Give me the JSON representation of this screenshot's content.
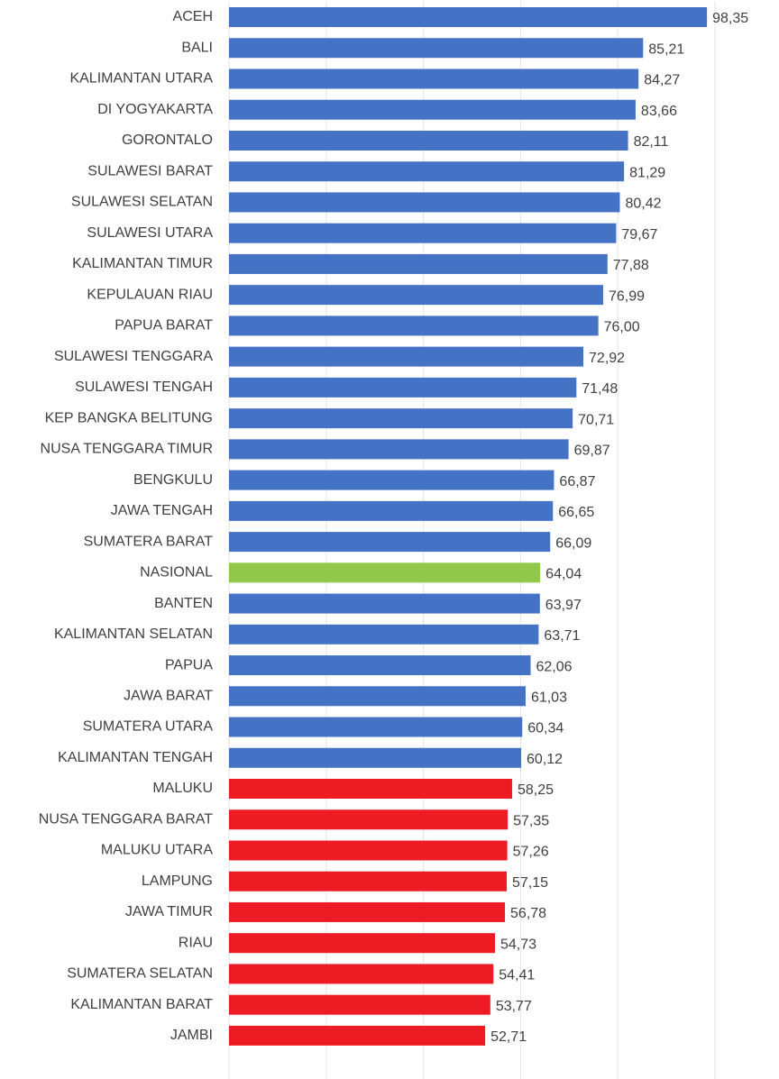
{
  "chart_data": {
    "type": "barh",
    "categories": [
      "ACEH",
      "BALI",
      "KALIMANTAN UTARA",
      "DI YOGYAKARTA",
      "GORONTALO",
      "SULAWESI BARAT",
      "SULAWESI SELATAN",
      "SULAWESI UTARA",
      "KALIMANTAN TIMUR",
      "KEPULAUAN RIAU",
      "PAPUA BARAT",
      "SULAWESI TENGGARA",
      "SULAWESI TENGAH",
      "KEP BANGKA BELITUNG",
      "NUSA TENGGARA TIMUR",
      "BENGKULU",
      "JAWA TENGAH",
      "SUMATERA BARAT",
      "NASIONAL",
      "BANTEN",
      "KALIMANTAN SELATAN",
      "PAPUA",
      "JAWA BARAT",
      "SUMATERA UTARA",
      "KALIMANTAN TENGAH",
      "MALUKU",
      "NUSA TENGGARA BARAT",
      "MALUKU UTARA",
      "LAMPUNG",
      "JAWA TIMUR",
      "RIAU",
      "SUMATERA SELATAN",
      "KALIMANTAN BARAT",
      "JAMBI"
    ],
    "values": [
      98.35,
      85.21,
      84.27,
      83.66,
      82.11,
      81.29,
      80.42,
      79.67,
      77.88,
      76.99,
      76.0,
      72.92,
      71.48,
      70.71,
      69.87,
      66.87,
      66.65,
      66.09,
      64.04,
      63.97,
      63.71,
      62.06,
      61.03,
      60.34,
      60.12,
      58.25,
      57.35,
      57.26,
      57.15,
      56.78,
      54.73,
      54.41,
      53.77,
      52.71
    ],
    "value_labels": [
      "98,35",
      "85,21",
      "84,27",
      "83,66",
      "82,11",
      "81,29",
      "80,42",
      "79,67",
      "77,88",
      "76,99",
      "76,00",
      "72,92",
      "71,48",
      "70,71",
      "69,87",
      "66,87",
      "66,65",
      "66,09",
      "64,04",
      "63,97",
      "63,71",
      "62,06",
      "61,03",
      "60,34",
      "60,12",
      "58,25",
      "57,35",
      "57,26",
      "57,15",
      "56,78",
      "54,73",
      "54,41",
      "53,77",
      "52,71"
    ],
    "colors": [
      "#4472c4",
      "#4472c4",
      "#4472c4",
      "#4472c4",
      "#4472c4",
      "#4472c4",
      "#4472c4",
      "#4472c4",
      "#4472c4",
      "#4472c4",
      "#4472c4",
      "#4472c4",
      "#4472c4",
      "#4472c4",
      "#4472c4",
      "#4472c4",
      "#4472c4",
      "#4472c4",
      "#92c84a",
      "#4472c4",
      "#4472c4",
      "#4472c4",
      "#4472c4",
      "#4472c4",
      "#4472c4",
      "#ed1c24",
      "#ed1c24",
      "#ed1c24",
      "#ed1c24",
      "#ed1c24",
      "#ed1c24",
      "#ed1c24",
      "#ed1c24",
      "#ed1c24"
    ],
    "xlim": [
      0,
      100
    ],
    "xticks": [
      0,
      20,
      40,
      60,
      80,
      100
    ],
    "grid": true
  }
}
